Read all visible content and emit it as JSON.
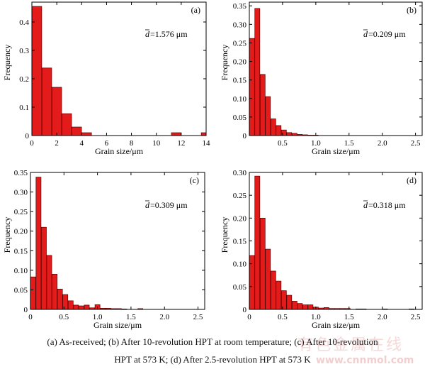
{
  "figure": {
    "caption_line1": "(a) As-received; (b) After 10-revolution HPT at room temperature; (c) After 10-revolution",
    "caption_line2": "HPT at 573 K; (d) After 2.5-revolution HPT at 573 K",
    "watermark_cn": "有色金属在线",
    "watermark_url": "www.cnnmol.com",
    "bar_color": "#e41b1b",
    "bar_edge_color": "#5a0000"
  },
  "chart_data": [
    {
      "type": "bar",
      "panel_label": "(a)",
      "annotation_value": "=1.576 μm",
      "xlabel": "Grain size/μm",
      "ylabel": "Frequency",
      "xlim": [
        0,
        14
      ],
      "ylim": [
        0,
        0.47
      ],
      "xticks": [
        0,
        2,
        4,
        6,
        8,
        10,
        12,
        14
      ],
      "xtick_labels": [
        "0",
        "2",
        "4",
        "6",
        "8",
        "10",
        "12",
        "14"
      ],
      "yticks": [
        0,
        0.1,
        0.2,
        0.3,
        0.4
      ],
      "ytick_labels": [
        "0",
        "0.1",
        "0.2",
        "0.3",
        "0.4"
      ],
      "bin_width": 0.78,
      "bin_centers": [
        0.4,
        1.2,
        2.0,
        2.8,
        3.6,
        4.4,
        5.2,
        6.0,
        6.8,
        7.6,
        8.4,
        9.2,
        10.0,
        10.8,
        11.6,
        12.4,
        13.2,
        14.0
      ],
      "values": [
        0.455,
        0.238,
        0.17,
        0.077,
        0.03,
        0.01,
        0.0,
        0.0,
        0.0,
        0.0,
        0.0,
        0.0,
        0.0,
        0.0,
        0.01,
        0.0,
        0.0,
        0.01
      ]
    },
    {
      "type": "bar",
      "panel_label": "(b)",
      "annotation_value": "=0.209 μm",
      "xlabel": "Grain size/μm",
      "ylabel": "Frequency",
      "xlim": [
        0,
        2.6
      ],
      "ylim": [
        0,
        0.36
      ],
      "xticks": [
        0.5,
        1.0,
        1.5,
        2.0,
        2.5
      ],
      "xtick_labels": [
        "0.5",
        "1.0",
        "1.5",
        "2.0",
        "2.5"
      ],
      "yticks": [
        0,
        0.05,
        0.1,
        0.15,
        0.2,
        0.25,
        0.3,
        0.35
      ],
      "ytick_labels": [
        "0",
        "0.05",
        "0.10",
        "0.15",
        "0.20",
        "0.25",
        "0.30",
        "0.35"
      ],
      "bin_width": 0.075,
      "bin_centers": [
        0.04,
        0.12,
        0.2,
        0.28,
        0.36,
        0.44,
        0.52,
        0.6,
        0.68,
        0.76,
        0.84,
        0.92,
        1.0
      ],
      "values": [
        0.262,
        0.343,
        0.165,
        0.105,
        0.045,
        0.027,
        0.015,
        0.008,
        0.006,
        0.003,
        0.002,
        0.001,
        0.001
      ]
    },
    {
      "type": "bar",
      "panel_label": "(c)",
      "annotation_value": "=0.309 μm",
      "xlabel": "Grain size/μm",
      "ylabel": "Frequency",
      "xlim": [
        0,
        2.6
      ],
      "ylim": [
        0,
        0.35
      ],
      "xticks": [
        0,
        0.5,
        1.0,
        1.5,
        2.0,
        2.5
      ],
      "xtick_labels": [
        "0",
        "0.5",
        "1.0",
        "1.5",
        "2.0",
        "2.5"
      ],
      "yticks": [
        0,
        0.05,
        0.1,
        0.15,
        0.2,
        0.25,
        0.3,
        0.35
      ],
      "ytick_labels": [
        "0",
        "0.05",
        "0.10",
        "0.15",
        "0.20",
        "0.25",
        "0.30",
        "0.35"
      ],
      "bin_width": 0.075,
      "bin_centers": [
        0.04,
        0.12,
        0.2,
        0.28,
        0.36,
        0.44,
        0.52,
        0.6,
        0.68,
        0.76,
        0.84,
        0.92,
        1.0,
        1.08,
        1.16,
        1.24,
        1.32,
        1.4,
        1.48,
        1.56,
        1.64
      ],
      "values": [
        0.083,
        0.338,
        0.21,
        0.138,
        0.09,
        0.052,
        0.038,
        0.022,
        0.011,
        0.009,
        0.011,
        0.004,
        0.012,
        0.003,
        0.003,
        0.002,
        0.002,
        0.001,
        0.0,
        0.0,
        0.002
      ]
    },
    {
      "type": "bar",
      "panel_label": "(d)",
      "annotation_value": "=0.318 μm",
      "xlabel": "Grain size/μm",
      "ylabel": "Frequency",
      "xlim": [
        0,
        2.6
      ],
      "ylim": [
        0,
        0.3
      ],
      "xticks": [
        0,
        0.5,
        1.0,
        1.5,
        2.0,
        2.5
      ],
      "xtick_labels": [
        "0",
        "0.5",
        "1.0",
        "1.5",
        "2.0",
        "2.5"
      ],
      "yticks": [
        0,
        0.05,
        0.1,
        0.15,
        0.2,
        0.25,
        0.3
      ],
      "ytick_labels": [
        "0",
        "0.05",
        "0.10",
        "0.15",
        "0.20",
        "0.25",
        "0.30"
      ],
      "bin_width": 0.075,
      "bin_centers": [
        0.04,
        0.12,
        0.2,
        0.28,
        0.36,
        0.44,
        0.52,
        0.6,
        0.68,
        0.76,
        0.84,
        0.92,
        1.0,
        1.08,
        1.16,
        1.24,
        1.32,
        1.4,
        1.48,
        1.56,
        1.64,
        1.72,
        1.8,
        1.88,
        1.96,
        2.04,
        2.12,
        2.2,
        2.28,
        2.36,
        2.44
      ],
      "values": [
        0.118,
        0.292,
        0.2,
        0.132,
        0.084,
        0.062,
        0.041,
        0.031,
        0.018,
        0.013,
        0.01,
        0.01,
        0.005,
        0.003,
        0.004,
        0.002,
        0.002,
        0.002,
        0.002,
        0.0,
        0.001,
        0.001,
        0.0,
        0.0,
        0.0,
        0.001,
        0.0,
        0.0,
        0.0,
        0.0,
        0.001
      ]
    }
  ]
}
